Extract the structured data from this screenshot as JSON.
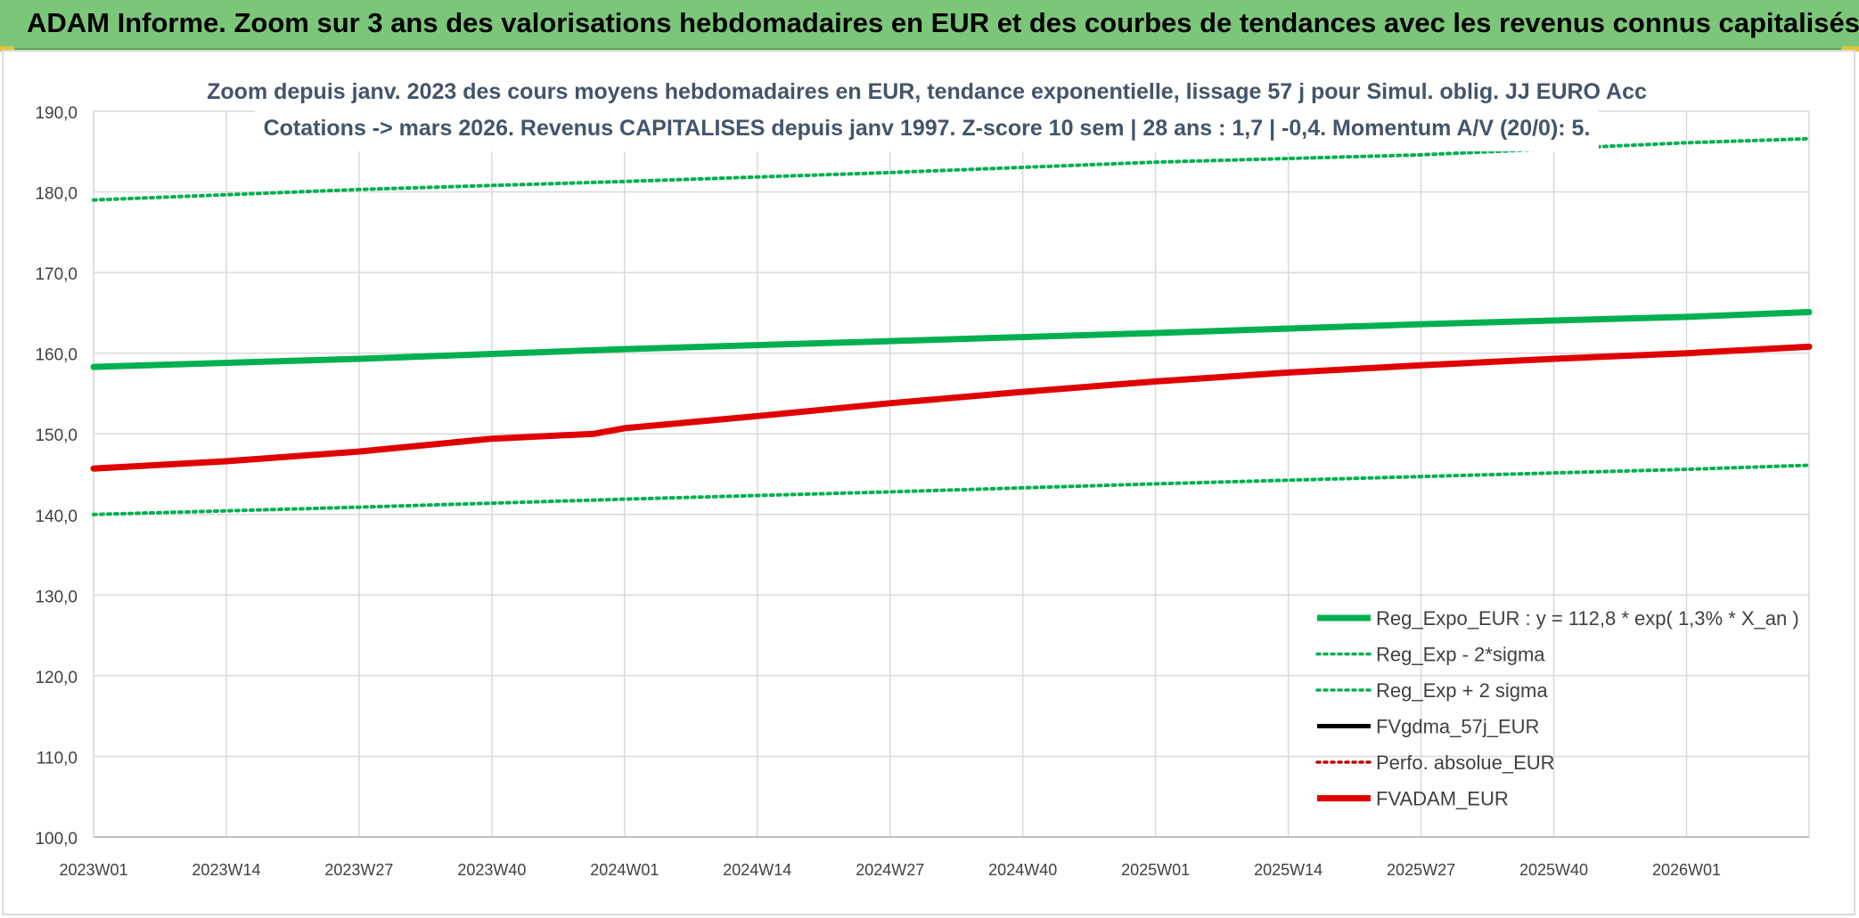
{
  "header": {
    "title": "ADAM Informe. Zoom sur 3 ans des valorisations hebdomadaires en EUR et des courbes de tendances avec les revenus connus capitalisés"
  },
  "chart_data": {
    "type": "line",
    "title_line1": "Zoom depuis janv. 2023 des cours moyens hebdomadaires en EUR, tendance exponentielle, lissage 57 j pour Simul. oblig. JJ EURO Acc",
    "title_line2": "Cotations -> mars 2026. Revenus CAPITALISES depuis janv 1997. Z-score 10 sem | 28 ans : 1,7 | -0,4. Momentum A/V (20/0): 5.",
    "categories": [
      "2023W01",
      "2023W14",
      "2023W27",
      "2023W40",
      "2024W01",
      "2024W14",
      "2024W27",
      "2024W40",
      "2025W01",
      "2025W14",
      "2025W27",
      "2025W40",
      "2026W01"
    ],
    "x_start_week": "2023W01",
    "x_end_week": "2026W13",
    "ylim": [
      100,
      190
    ],
    "yticks": [
      "100,0",
      "110,0",
      "120,0",
      "130,0",
      "140,0",
      "150,0",
      "160,0",
      "170,0",
      "180,0",
      "190,0"
    ],
    "grid": true,
    "legend_position": "bottom-right",
    "series": [
      {
        "name": "Reg_Expo_EUR : y = 112,8 * exp( 1,3% *  X_an )",
        "color": "#00b050",
        "style": "solid",
        "points": [
          [
            "2023W01",
            158.3
          ],
          [
            "2023W27",
            159.3
          ],
          [
            "2024W01",
            160.5
          ],
          [
            "2024W27",
            161.5
          ],
          [
            "2025W01",
            162.5
          ],
          [
            "2025W27",
            163.6
          ],
          [
            "2026W01",
            164.5
          ],
          [
            "2026W13",
            165.1
          ]
        ]
      },
      {
        "name": "Reg_Exp - 2*sigma",
        "color": "#00b050",
        "style": "dotted",
        "points": [
          [
            "2023W01",
            140.0
          ],
          [
            "2023W27",
            140.9
          ],
          [
            "2024W01",
            141.9
          ],
          [
            "2024W27",
            142.8
          ],
          [
            "2025W01",
            143.8
          ],
          [
            "2025W27",
            144.7
          ],
          [
            "2026W01",
            145.6
          ],
          [
            "2026W13",
            146.1
          ]
        ]
      },
      {
        "name": "Reg_Exp + 2 sigma",
        "color": "#00b050",
        "style": "dotted",
        "points": [
          [
            "2023W01",
            179.0
          ],
          [
            "2023W27",
            180.3
          ],
          [
            "2024W01",
            181.3
          ],
          [
            "2024W27",
            182.4
          ],
          [
            "2025W01",
            183.7
          ],
          [
            "2025W27",
            184.6
          ],
          [
            "2026W01",
            186.1
          ],
          [
            "2026W13",
            186.6
          ]
        ]
      },
      {
        "name": "FVgdma_57j_EUR",
        "color": "#000000",
        "style": "solid",
        "points": []
      },
      {
        "name": "Perfo. absolue_EUR",
        "color": "#c00000",
        "style": "dotted",
        "points": []
      },
      {
        "name": "FVADAM_EUR",
        "color": "#e00000",
        "style": "solid",
        "points": [
          [
            "2023W01",
            145.7
          ],
          [
            "2023W14",
            146.6
          ],
          [
            "2023W27",
            147.8
          ],
          [
            "2023W40",
            149.4
          ],
          [
            "2023W50",
            150.0
          ],
          [
            "2024W01",
            150.7
          ],
          [
            "2024W14",
            152.2
          ],
          [
            "2024W27",
            153.8
          ],
          [
            "2024W40",
            155.2
          ],
          [
            "2025W01",
            156.5
          ],
          [
            "2025W14",
            157.6
          ],
          [
            "2025W27",
            158.5
          ],
          [
            "2025W40",
            159.3
          ],
          [
            "2026W01",
            160.0
          ],
          [
            "2026W13",
            160.8
          ]
        ]
      }
    ]
  }
}
